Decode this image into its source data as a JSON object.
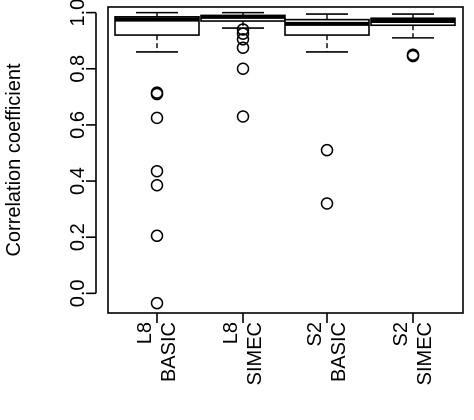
{
  "chart_data": {
    "type": "boxplot",
    "ylabel": "Correlation coefficient",
    "ylim": [
      -0.07,
      1.02
    ],
    "yticks": [
      {
        "value": 0.0,
        "label": "0.0"
      },
      {
        "value": 0.2,
        "label": "0.2"
      },
      {
        "value": 0.4,
        "label": "0.4"
      },
      {
        "value": 0.6,
        "label": "0.6"
      },
      {
        "value": 0.8,
        "label": "0.8"
      },
      {
        "value": 1.0,
        "label": "1.0"
      }
    ],
    "grid": false,
    "categories": [
      {
        "label_line1": "L8",
        "label_line2": "BASIC",
        "whisker_low": 0.86,
        "q1": 0.92,
        "median": 0.975,
        "q3": 0.985,
        "whisker_high": 1.0,
        "outliers": [
          0.715,
          0.71,
          0.625,
          0.435,
          0.385,
          0.205,
          -0.035
        ]
      },
      {
        "label_line1": "L8",
        "label_line2": "SIMEC",
        "whisker_low": 0.945,
        "q1": 0.97,
        "median": 0.985,
        "q3": 0.99,
        "whisker_high": 1.0,
        "outliers": [
          0.94,
          0.925,
          0.905,
          0.875,
          0.8,
          0.63
        ]
      },
      {
        "label_line1": "S2",
        "label_line2": "BASIC",
        "whisker_low": 0.86,
        "q1": 0.92,
        "median": 0.96,
        "q3": 0.975,
        "whisker_high": 0.995,
        "outliers": [
          0.51,
          0.32
        ]
      },
      {
        "label_line1": "S2",
        "label_line2": "SIMEC",
        "whisker_low": 0.91,
        "q1": 0.955,
        "median": 0.97,
        "q3": 0.98,
        "whisker_high": 0.995,
        "outliers": [
          0.85,
          0.845
        ]
      }
    ]
  }
}
